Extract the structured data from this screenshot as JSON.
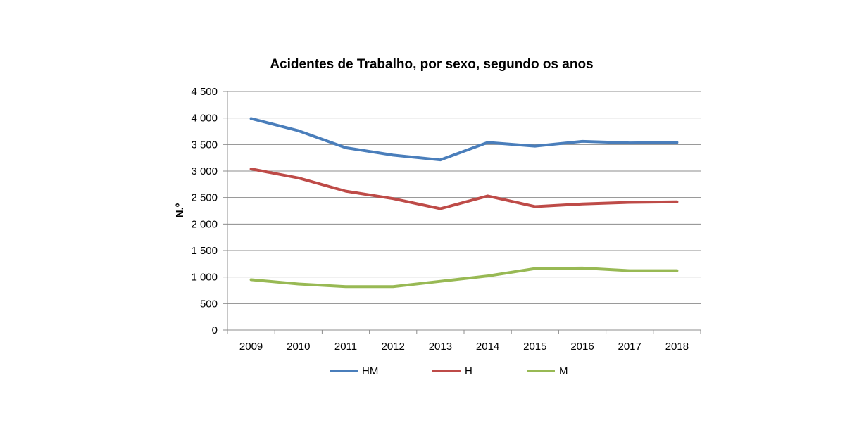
{
  "chart_data": {
    "type": "line",
    "title": "Acidentes de Trabalho, por sexo, segundo os anos",
    "xlabel": "",
    "ylabel": "N.º",
    "categories": [
      "2009",
      "2010",
      "2011",
      "2012",
      "2013",
      "2014",
      "2015",
      "2016",
      "2017",
      "2018"
    ],
    "ylim": [
      0,
      4500
    ],
    "yticks": [
      0,
      500,
      1000,
      1500,
      2000,
      2500,
      3000,
      3500,
      4000,
      4500
    ],
    "ytick_labels": [
      "0",
      "500",
      "1 000",
      "1 500",
      "2 000",
      "2 500",
      "3 000",
      "3 500",
      "4 000",
      "4 500"
    ],
    "grid": true,
    "legend_position": "bottom",
    "series": [
      {
        "name": "HM",
        "color": "#4a7ebb",
        "values": [
          3990,
          3760,
          3440,
          3300,
          3210,
          3540,
          3470,
          3560,
          3530,
          3540
        ]
      },
      {
        "name": "H",
        "color": "#be4b48",
        "values": [
          3040,
          2870,
          2620,
          2480,
          2290,
          2530,
          2330,
          2380,
          2410,
          2420
        ]
      },
      {
        "name": "M",
        "color": "#98b954",
        "values": [
          950,
          870,
          820,
          820,
          920,
          1020,
          1160,
          1170,
          1120,
          1120
        ]
      }
    ]
  }
}
